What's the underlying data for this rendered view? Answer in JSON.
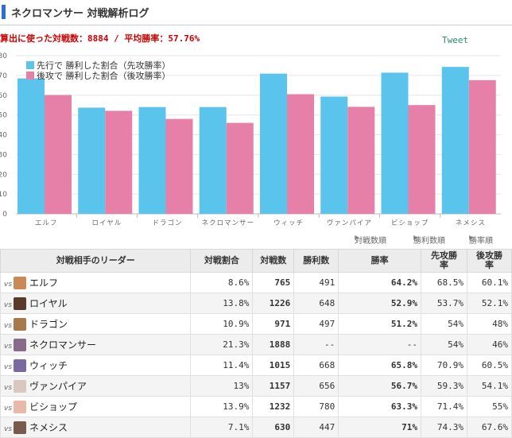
{
  "header": {
    "title": "ネクロマンサー 対戦解析ログ"
  },
  "summary": {
    "text": "算出に使った対戦数：8884 / 平均勝率：57.76%"
  },
  "tweet": {
    "label": "Tweet"
  },
  "chart_data": {
    "type": "bar",
    "categories": [
      "エルフ",
      "ロイヤル",
      "ドラゴン",
      "ネクロマンサー",
      "ウィッチ",
      "ヴァンパイア",
      "ビショップ",
      "ネメシス"
    ],
    "series": [
      {
        "name": "先行で 勝利した割合（先攻勝率）",
        "color": "#5bc4ec",
        "values": [
          68.5,
          53.7,
          54,
          54,
          70.9,
          59.3,
          71.4,
          74.3
        ]
      },
      {
        "name": "後攻で 勝利した割合（後攻勝率）",
        "color": "#e680a8",
        "values": [
          60.1,
          52.1,
          48,
          46,
          60.5,
          54.1,
          55,
          67.6
        ]
      }
    ],
    "ylim": [
      0,
      80
    ],
    "yticks": [
      "0",
      "10",
      "20",
      "30",
      "40",
      "50",
      "60",
      "70",
      "80"
    ],
    "legend_position": "top-left",
    "grid": true
  },
  "sort_links": [
    "対戦数順",
    "勝利数順",
    "勝率順"
  ],
  "table": {
    "headers": {
      "leader": "対戦相手のリーダー",
      "share": "対戦割合",
      "games": "対戦数",
      "wins": "勝利数",
      "winrate": "勝率",
      "first": "先攻勝\n率",
      "second": "後攻勝\n率"
    },
    "vs_label": "vs",
    "rows": [
      {
        "name": "エルフ",
        "share": "8.6%",
        "games": "765",
        "wins": "491",
        "winrate": "64.2%",
        "first": "68.5%",
        "second": "60.1%",
        "avatar_color": "#c98a5a"
      },
      {
        "name": "ロイヤル",
        "share": "13.8%",
        "games": "1226",
        "wins": "648",
        "winrate": "52.9%",
        "first": "53.7%",
        "second": "52.1%",
        "avatar_color": "#5a3a2a"
      },
      {
        "name": "ドラゴン",
        "share": "10.9%",
        "games": "971",
        "wins": "497",
        "winrate": "51.2%",
        "first": "54%",
        "second": "48%",
        "avatar_color": "#a6784a"
      },
      {
        "name": "ネクロマンサー",
        "share": "21.3%",
        "games": "1888",
        "wins": "--",
        "winrate": "--",
        "first": "54%",
        "second": "46%",
        "avatar_color": "#8a6a8a"
      },
      {
        "name": "ウィッチ",
        "share": "11.4%",
        "games": "1015",
        "wins": "668",
        "winrate": "65.8%",
        "first": "70.9%",
        "second": "60.5%",
        "avatar_color": "#7a6aa0"
      },
      {
        "name": "ヴァンパイア",
        "share": "13%",
        "games": "1157",
        "wins": "656",
        "winrate": "56.7%",
        "first": "59.3%",
        "second": "54.1%",
        "avatar_color": "#d8c8c0"
      },
      {
        "name": "ビショップ",
        "share": "13.9%",
        "games": "1232",
        "wins": "780",
        "winrate": "63.3%",
        "first": "71.4%",
        "second": "55%",
        "avatar_color": "#e8b8a8"
      },
      {
        "name": "ネメシス",
        "share": "7.1%",
        "games": "630",
        "wins": "447",
        "winrate": "71%",
        "first": "74.3%",
        "second": "67.6%",
        "avatar_color": "#7a5a4a"
      }
    ]
  }
}
